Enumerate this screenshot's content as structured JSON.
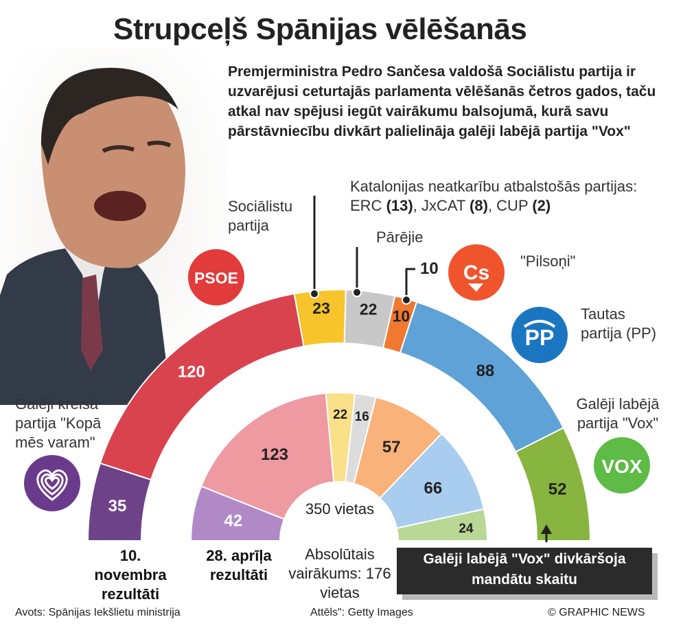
{
  "title": "Strupceļš Spānijas vēlēšanās",
  "subtitle": "Premjerministra Pedro Sančesa valdošā Sociālistu partija ir uzvarējusi ceturtajās parlamenta vēlēšanās četros gados, taču atkal nav spējusi iegūt vairākumu balsojumā, kurā savu pārstāvniecību divkārt palielināja galēji labējā partija \"Vox\"",
  "parties": {
    "socialists": "Sociālistu partija",
    "catalan_head": "Katalonijas neatkarību atbalstošās partijas:",
    "catalan_erc": "ERC",
    "catalan_erc_n": "(13)",
    "catalan_jxcat": "JxCAT",
    "catalan_jxcat_n": "(8)",
    "catalan_cup": "CUP",
    "catalan_cup_n": "(2)",
    "others": "Pārējie",
    "citizens_count": "10",
    "citizens": "\"Pilsoņi\"",
    "pp": "Tautas partija (PP)",
    "vox": "Galēji labējā partija \"Vox\"",
    "podemos": "Galēji kreisā partija \"Kopā mēs varam\""
  },
  "logos": {
    "psoe": "PSOE",
    "cs": "Cs",
    "pp": "PP",
    "vox": "VOX"
  },
  "center": {
    "seats": "350 vietas",
    "majority": "Absolūtais vairākums: 176 vietas"
  },
  "captions": {
    "november": "10. novembra rezultāti",
    "april": "28. aprīļa rezultāti"
  },
  "callout": "Galēji labējā \"Vox\" divkāršoja mandātu skaitu",
  "footer": {
    "source": "Avots: Spānijas Iekšlietu ministrija",
    "photo": "Attēls\": Getty Images",
    "credit": "© GRAPHIC NEWS"
  },
  "chart_data": {
    "type": "pie",
    "subtype": "parliament-semicircle",
    "total_seats": 350,
    "series": [
      {
        "name": "10. novembra rezultāti",
        "categories": [
          "Galēji kreisā partija \"Kopā mēs varam\"",
          "Sociālistu partija",
          "Katalonijas neatkarību atbalstošās partijas",
          "Pārējie",
          "\"Pilsoņi\"",
          "Tautas partija (PP)",
          "Galēji labējā partija \"Vox\""
        ],
        "values": [
          35,
          120,
          23,
          22,
          10,
          88,
          52
        ],
        "colors": [
          "#6d4288",
          "#d9434e",
          "#f7c52b",
          "#c8c8c8",
          "#f0782f",
          "#5fa2d8",
          "#88b440"
        ]
      },
      {
        "name": "28. aprīļa rezultāti",
        "categories": [
          "Galēji kreisā partija \"Kopā mēs varam\"",
          "Sociālistu partija",
          "Katalonijas neatkarību atbalstošās partijas",
          "Pārējie",
          "\"Pilsoņi\"",
          "Tautas partija (PP)",
          "Galēji labējā partija \"Vox\""
        ],
        "values": [
          42,
          123,
          22,
          16,
          57,
          66,
          24
        ],
        "colors": [
          "#b189c7",
          "#ef9aa1",
          "#fbe08a",
          "#dcdcdc",
          "#f9b27a",
          "#a9cdef",
          "#b9d795"
        ]
      }
    ]
  }
}
